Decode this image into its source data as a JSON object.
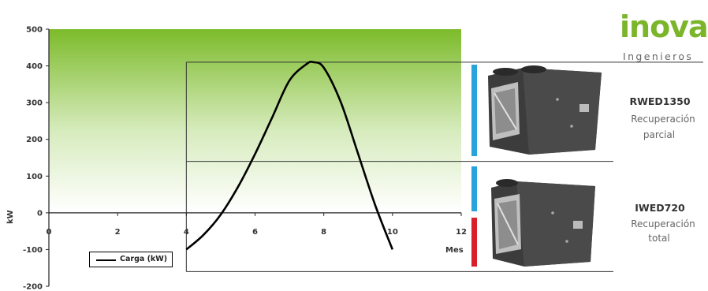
{
  "chart_data": {
    "type": "line",
    "series": [
      {
        "name": "Carga (kW)",
        "x": [
          4,
          4.5,
          5,
          5.5,
          6,
          6.5,
          7,
          7.5,
          7.7,
          8,
          8.5,
          9,
          9.5,
          10
        ],
        "values": [
          -100,
          -60,
          -5,
          70,
          160,
          260,
          360,
          405,
          410,
          395,
          300,
          160,
          20,
          -100
        ]
      }
    ],
    "xlabel": "Mes",
    "ylabel": "kW",
    "xlim": [
      0,
      12
    ],
    "ylim": [
      -200,
      500
    ],
    "xticks": [
      "0",
      "2",
      "4",
      "6",
      "8",
      "10",
      "12"
    ],
    "yticks": [
      "-200",
      "-100",
      "0",
      "100",
      "200",
      "300",
      "400",
      "500"
    ],
    "grid": false,
    "legend_position": "bottom-left",
    "reference_lines": [
      {
        "label": "capacity_top",
        "value": 410
      },
      {
        "label": "machine_split",
        "value": 140
      },
      {
        "label": "lower_bound",
        "value": -160
      }
    ],
    "background_colors": {
      "top": "#7cbb2a",
      "bottom": "#ffffff"
    }
  },
  "brand": {
    "logo_text": "inova",
    "logo_subtitle": "Ingenieros"
  },
  "machines": [
    {
      "name": "RWED1350",
      "desc1": "Recuperación",
      "desc2": "parcial"
    },
    {
      "name": "IWED720",
      "desc1": "Recuperación",
      "desc2": "total"
    }
  ],
  "indicator_colors": {
    "blue": "#29a3dc",
    "red": "#d9202a"
  }
}
